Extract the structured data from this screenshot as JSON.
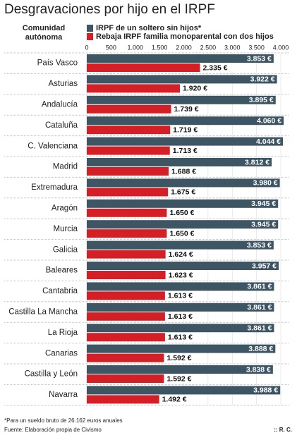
{
  "chart_data": {
    "type": "bar",
    "orientation": "horizontal",
    "title": "Desgravaciones por hijo en el IRPF",
    "category_header": [
      "Comunidad",
      "autónoma"
    ],
    "categories": [
      "País Vasco",
      "Asturias",
      "Andalucía",
      "Cataluña",
      "C. Valenciana",
      "Madrid",
      "Extremadura",
      "Aragón",
      "Murcia",
      "Galicia",
      "Baleares",
      "Cantabria",
      "Castilla La Mancha",
      "La Rioja",
      "Canarias",
      "Castilla y León",
      "Navarra"
    ],
    "series": [
      {
        "name": "IRPF de un soltero sin hijos*",
        "color": "#3e5563",
        "values": [
          3853,
          3922,
          3895,
          4060,
          4044,
          3812,
          3980,
          3945,
          3945,
          3853,
          3957,
          3861,
          3861,
          3861,
          3888,
          3838,
          3988
        ],
        "value_labels": [
          "3.853 €",
          "3.922 €",
          "3.895 €",
          "4.060 €",
          "4.044 €",
          "3.812 €",
          "3.980 €",
          "3.945 €",
          "3.945 €",
          "3.853 €",
          "3.957 €",
          "3.861 €",
          "3.861 €",
          "3.861 €",
          "3.888 €",
          "3.838 €",
          "3.988 €"
        ]
      },
      {
        "name": "Rebaja IRPF familia monoparental con dos hijos",
        "color": "#d51f26",
        "values": [
          2335,
          1920,
          1739,
          1719,
          1713,
          1688,
          1675,
          1650,
          1650,
          1624,
          1623,
          1613,
          1613,
          1613,
          1592,
          1592,
          1492
        ],
        "value_labels": [
          "2.335 €",
          "1.920 €",
          "1.739 €",
          "1.719 €",
          "1.713 €",
          "1.688 €",
          "1.675 €",
          "1.650 €",
          "1.650 €",
          "1.624 €",
          "1.623 €",
          "1.613 €",
          "1.613 €",
          "1.613 €",
          "1.592 €",
          "1.592 €",
          "1.492 €"
        ]
      }
    ],
    "xlim": [
      0,
      4000
    ],
    "xticks": [
      0,
      500,
      {
        "value": 1000,
        "label": "1.000"
      },
      {
        "value": 1500,
        "label": "1.500"
      },
      {
        "value": 2000,
        "label": "2.000"
      },
      {
        "value": 2500,
        "label": "2.500"
      },
      {
        "value": 3000,
        "label": "3.000"
      },
      {
        "value": 3500,
        "label": "3.500"
      },
      {
        "value": 4000,
        "label": "4.000"
      }
    ],
    "grid": true,
    "footnote": "*Para un sueldo bruto de 26.162 euros anuales",
    "source": "Fuente: Elaboración propia de Civismo",
    "credit": ":: R. C."
  }
}
